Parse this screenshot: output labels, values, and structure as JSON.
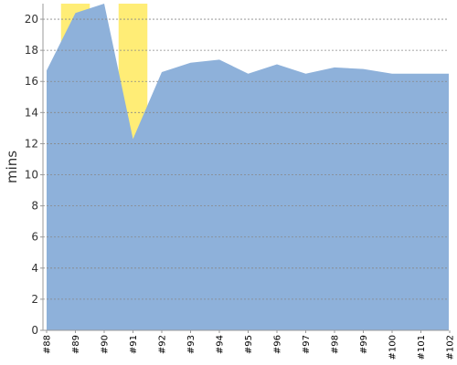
{
  "chart_data": {
    "type": "area",
    "title": "",
    "xlabel": "",
    "ylabel": "mins",
    "ylim": [
      0,
      21
    ],
    "yticks": [
      0,
      2,
      4,
      6,
      8,
      10,
      12,
      14,
      16,
      18,
      20
    ],
    "grid": true,
    "x": [
      "#88",
      "#89",
      "#90",
      "#91",
      "#92",
      "#93",
      "#94",
      "#95",
      "#96",
      "#97",
      "#98",
      "#99",
      "#100",
      "#101",
      "#102"
    ],
    "series": [
      {
        "color": "#8eb1da",
        "values": [
          16.7,
          20.4,
          21,
          12.3,
          16.6,
          17.2,
          17.4,
          16.5,
          17.1,
          16.5,
          16.9,
          16.8,
          16.5,
          16.5,
          16.5
        ]
      }
    ],
    "highlight_color": "#ffed76",
    "highlight_bands": [
      {
        "from": "#88",
        "to": "#89"
      },
      {
        "from": "#90",
        "to": "#91"
      }
    ],
    "axis_color": "#999999",
    "grid_color": "#888888"
  }
}
